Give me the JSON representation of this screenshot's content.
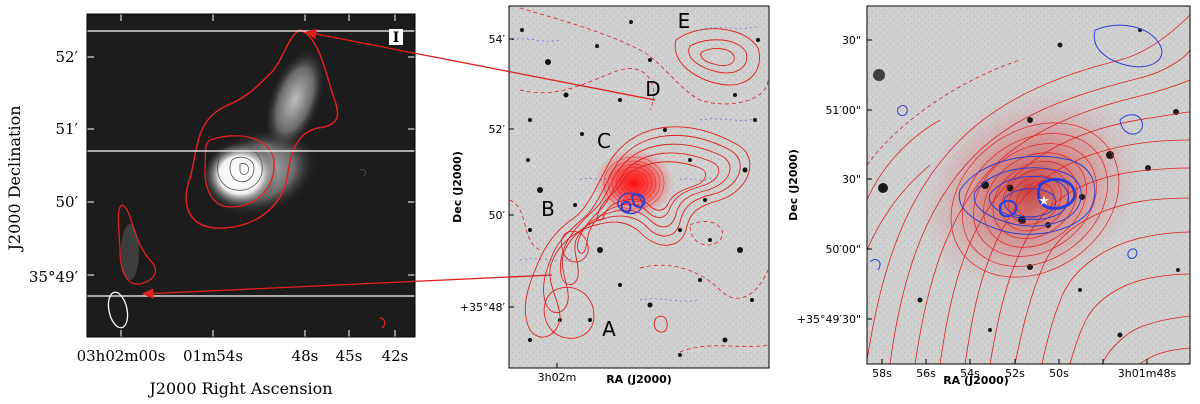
{
  "panel1": {
    "panel_label": "I",
    "y_ticks": [
      "52′",
      "51′",
      "50′",
      "35°49′"
    ],
    "x_ticks": [
      "03h02m00s",
      "01m54s",
      "48s",
      "45s",
      "42s"
    ],
    "xlabel": "J2000 Right Ascension",
    "ylabel": "J2000 Declination"
  },
  "panel2": {
    "y_ticks": [
      "54′",
      "52′",
      "50′",
      "+35°48′"
    ],
    "x_ticks": [
      "3h02m"
    ],
    "xlabel": "RA (J2000)",
    "ylabel": "Dec (J2000)",
    "labels": [
      "E",
      "D",
      "C",
      "B",
      "A"
    ]
  },
  "panel3": {
    "y_ticks": [
      "30\"",
      "51′00\"",
      "30\"",
      "50′00\"",
      "+35°49′30\""
    ],
    "x_ticks": [
      "58s",
      "56s",
      "54s",
      "52s",
      "50s",
      "3h01m48s"
    ],
    "xlabel": "RA (J2000)",
    "ylabel": "Dec (J2000)"
  },
  "colors": {
    "radio_contour": "#e02020",
    "optical_contour": "#2a3fd8",
    "arrow": "#e02020",
    "panel1_bg": "#1c1c1c"
  }
}
